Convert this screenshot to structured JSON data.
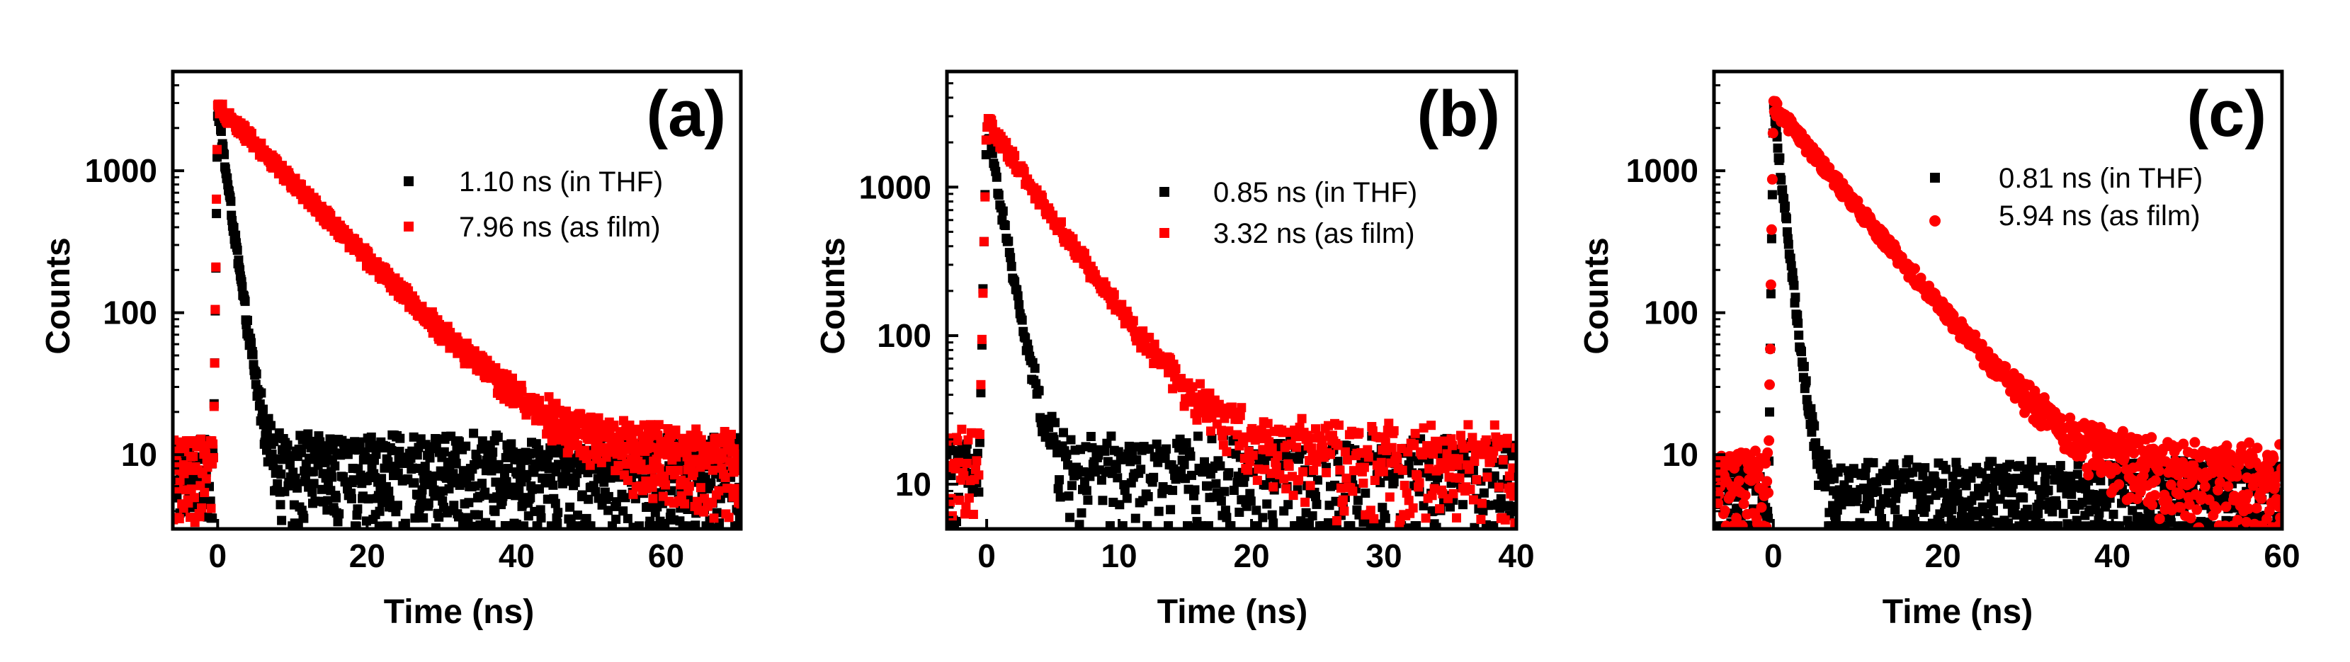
{
  "figure": {
    "background": "#ffffff"
  },
  "chart_data": [
    {
      "type": "scatter",
      "panel_label": "(a)",
      "xlabel": "Time (ns)",
      "ylabel": "Counts",
      "xlim": [
        -6,
        70
      ],
      "ylim": [
        3,
        5000
      ],
      "y_scale": "log",
      "x_ticks": [
        0,
        20,
        40,
        60
      ],
      "y_ticks": [
        10,
        100,
        1000
      ],
      "marker": "square",
      "series": [
        {
          "name": "1.10 ns (in THF)",
          "color": "#000000",
          "tau": 1.1,
          "peak": 2700,
          "background": 6,
          "noise_max": 18
        },
        {
          "name": "7.96 ns (as film)",
          "color": "#ff0000",
          "tau": 7.96,
          "peak": 2900,
          "background": 6,
          "noise_max": 18
        }
      ]
    },
    {
      "type": "scatter",
      "panel_label": "(b)",
      "xlabel": "Time (ns)",
      "ylabel": "Counts",
      "xlim": [
        -3,
        40
      ],
      "ylim": [
        5,
        6000
      ],
      "y_scale": "log",
      "x_ticks": [
        0,
        10,
        20,
        30,
        40
      ],
      "y_ticks": [
        10,
        100,
        1000
      ],
      "marker": "square",
      "series": [
        {
          "name": "0.85 ns (in THF)",
          "color": "#000000",
          "tau": 0.85,
          "peak": 2600,
          "background": 9,
          "noise_max": 16
        },
        {
          "name": "3.32 ns (as film)",
          "color": "#ff0000",
          "tau": 3.32,
          "peak": 2800,
          "background": 11,
          "noise_max": 18
        }
      ]
    },
    {
      "type": "scatter",
      "panel_label": "(c)",
      "xlabel": "Time (ns)",
      "ylabel": "Counts",
      "xlim": [
        -7,
        60
      ],
      "ylim": [
        3,
        5000
      ],
      "y_scale": "log",
      "x_ticks": [
        0,
        20,
        40,
        60
      ],
      "y_ticks": [
        10,
        100,
        1000
      ],
      "marker": "mixed",
      "series": [
        {
          "name": "0.81 ns (in THF)",
          "color": "#000000",
          "marker": "square",
          "tau": 0.81,
          "peak": 2800,
          "background": 4,
          "noise_max": 9
        },
        {
          "name": "5.94 ns (as film)",
          "color": "#ff0000",
          "marker": "circle",
          "tau": 5.94,
          "peak": 2900,
          "background": 5,
          "noise_max": 12
        }
      ]
    }
  ]
}
